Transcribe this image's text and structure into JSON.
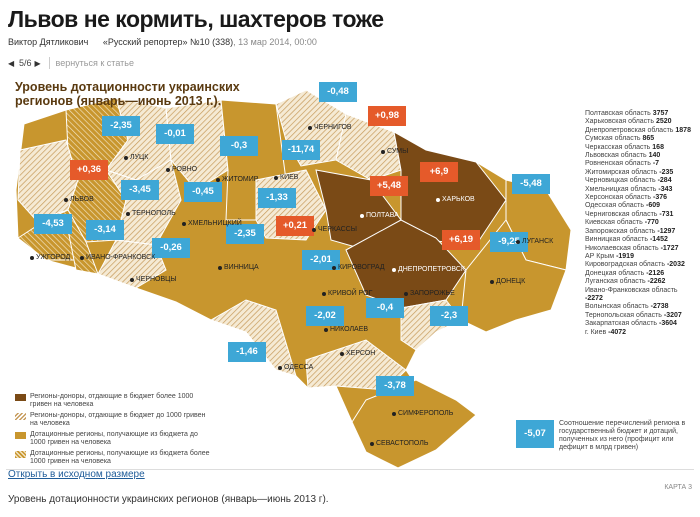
{
  "article": {
    "title": "Львов не кормить, шахтеров тоже",
    "author": "Виктор Дятликович",
    "publication": "«Русский репортер» №10 (338)",
    "date": ", 13 мар 2014, 00:00"
  },
  "pager": {
    "prev_icon": "triangle-left-icon",
    "next_icon": "triangle-right-icon",
    "counter": "5/6",
    "back_label": "вернуться к статье"
  },
  "map": {
    "title": "Уровень дотационности украинских регионов (январь—июнь 2013 г.).",
    "colors": {
      "donor_high": "#7a4a16",
      "donor_low_hatch": "#c69a5a",
      "subsidy_low": "#c8962e",
      "subsidy_high_hatch": "#f2e3c2",
      "pin_blue": "#3ea7d6",
      "pin_red": "#e55a2a"
    },
    "pins": [
      {
        "value": "-0,48",
        "color": "blue"
      },
      {
        "value": "+0,98",
        "color": "red"
      },
      {
        "value": "-2,35",
        "color": "blue"
      },
      {
        "value": "-0,01",
        "color": "blue"
      },
      {
        "value": "-0,3",
        "color": "blue"
      },
      {
        "value": "-11,74",
        "color": "blue"
      },
      {
        "value": "+0,36",
        "color": "red"
      },
      {
        "value": "+5,48",
        "color": "red"
      },
      {
        "value": "+6,9",
        "color": "red"
      },
      {
        "value": "-3,45",
        "color": "blue"
      },
      {
        "value": "-0,45",
        "color": "blue"
      },
      {
        "value": "-1,33",
        "color": "blue"
      },
      {
        "value": "-5,48",
        "color": "blue"
      },
      {
        "value": "-4,53",
        "color": "blue"
      },
      {
        "value": "-3,14",
        "color": "blue"
      },
      {
        "value": "+0,21",
        "color": "red"
      },
      {
        "value": "+6,19",
        "color": "red"
      },
      {
        "value": "-0,26",
        "color": "blue"
      },
      {
        "value": "-2,35",
        "color": "blue"
      },
      {
        "value": "-9,25",
        "color": "blue"
      },
      {
        "value": "-2,01",
        "color": "blue"
      },
      {
        "value": "-0,4",
        "color": "blue"
      },
      {
        "value": "-2,02",
        "color": "blue"
      },
      {
        "value": "-2,3",
        "color": "blue"
      },
      {
        "value": "-1,46",
        "color": "blue"
      },
      {
        "value": "-3,78",
        "color": "blue"
      }
    ],
    "cities": [
      "ЧЕРНИГОВ",
      "СУМЫ",
      "ЛУЦК",
      "РОВНО",
      "ЖИТОМИР",
      "КИЕВ",
      "ХАРЬКОВ",
      "ЛЬВОВ",
      "ТЕРНОПОЛЬ",
      "ХМЕЛЬНИЦКИЙ",
      "ПОЛТАВА",
      "ЧЕРКАССЫ",
      "ЛУГАНСК",
      "УЖГОРОД",
      "ИВАНО-ФРАНКОВСК",
      "ВИННИЦА",
      "КИРОВОГРАД",
      "ДНЕПРОПЕТРОВСК",
      "ЧЕРНОВЦЫ",
      "КРИВОЙ РОГ",
      "ЗАПОРОЖЬЕ",
      "ДОНЕЦК",
      "НИКОЛАЕВ",
      "ХЕРСОН",
      "ОДЕССА",
      "СИМФЕРОПОЛЬ",
      "СЕВАСТОПОЛЬ"
    ],
    "legend": [
      "Регионы-доноры, отдающие в бюджет более 1000 гривен на человека",
      "Регионы-доноры, отдающие в бюджет до 1000 гривен на человека",
      "Дотационные регионы, получающие из бюджета до 1000 гривен на человека",
      "Дотационные регионы, получающие из бюджета более 1000 гривен на человека"
    ],
    "ranking": [
      {
        "name": "Полтавская область",
        "value": "3757"
      },
      {
        "name": "Харьковская область",
        "value": "2520"
      },
      {
        "name": "Днепропетровская область",
        "value": "1878"
      },
      {
        "name": "Сумская область",
        "value": "865"
      },
      {
        "name": "Черкасская область",
        "value": "168"
      },
      {
        "name": "Львовская область",
        "value": "140"
      },
      {
        "name": "Ровненская область",
        "value": "-7"
      },
      {
        "name": "Житомирская область",
        "value": "-235"
      },
      {
        "name": "Черновицкая область",
        "value": "-284"
      },
      {
        "name": "Хмельницкая область",
        "value": "-343"
      },
      {
        "name": "Херсонская область",
        "value": "-376"
      },
      {
        "name": "Одесская область",
        "value": "-609"
      },
      {
        "name": "Черниговская область",
        "value": "-731"
      },
      {
        "name": "Киевская область",
        "value": "-770"
      },
      {
        "name": "Запорожская область",
        "value": "-1297"
      },
      {
        "name": "Винницкая область",
        "value": "-1452"
      },
      {
        "name": "Николаевская область",
        "value": "-1727"
      },
      {
        "name": "АР Крым",
        "value": "-1919"
      },
      {
        "name": "Кировоградская область",
        "value": "-2032"
      },
      {
        "name": "Донецкая область",
        "value": "-2126"
      },
      {
        "name": "Луганская область",
        "value": "-2262"
      },
      {
        "name": "Ивано-Франковская область",
        "value": "-2272"
      },
      {
        "name": "Волынская область",
        "value": "-2738"
      },
      {
        "name": "Тернопольская область",
        "value": "-3207"
      },
      {
        "name": "Закарпатская область",
        "value": "-3604"
      },
      {
        "name": "г. Киев",
        "value": "-4072"
      }
    ],
    "explain_pin": "-5,07",
    "explain_text": "Соотношение перечислений региона в государственный бюджет и дотаций, полученных из него (профицит или дефицит в млрд гривен)",
    "card_label": "КАРТА 3"
  },
  "open_link": "Открыть в исходном размере",
  "caption": "Уровень дотационности украинских регионов (январь—июнь 2013 г)."
}
